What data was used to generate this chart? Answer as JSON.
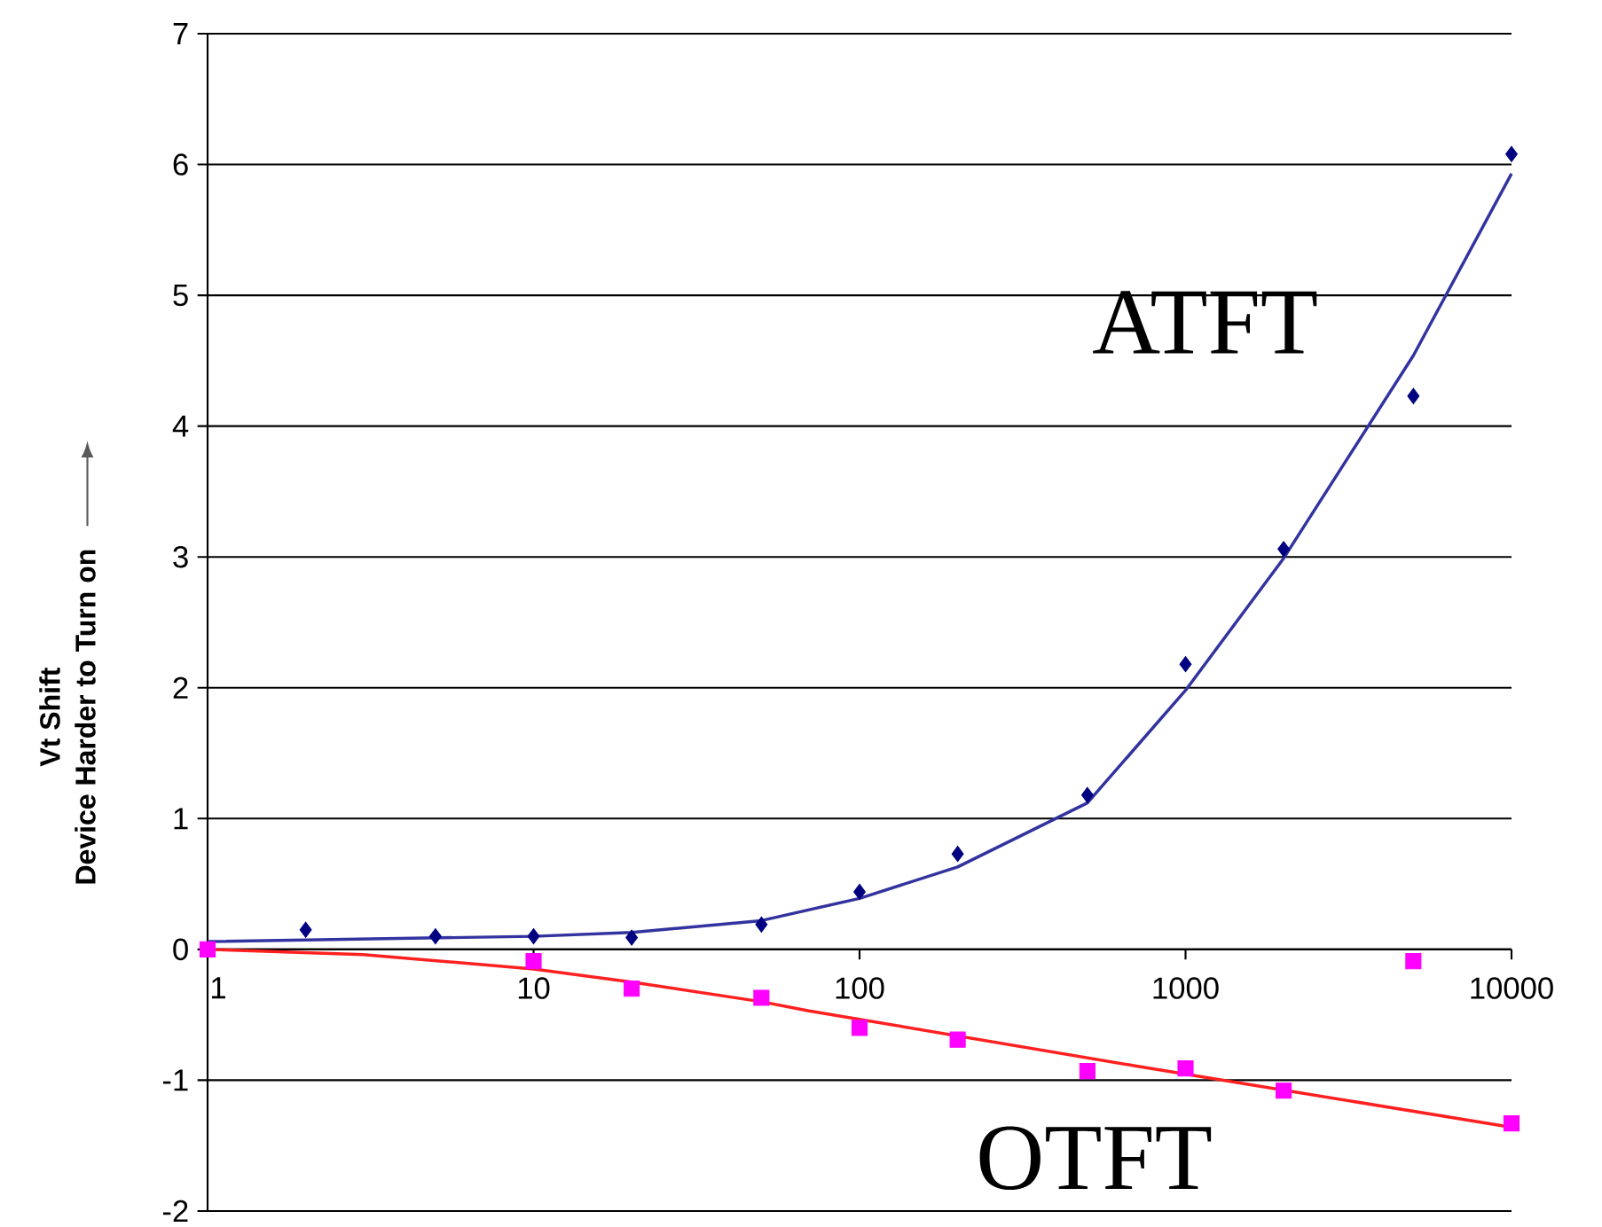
{
  "chart_data": {
    "type": "scatter",
    "ylabel": [
      "Vt Shift",
      "Device Harder to Turn on"
    ],
    "xlim": [
      1,
      10000
    ],
    "xticks": [
      1,
      10,
      100,
      1000,
      10000
    ],
    "ylim": [
      -2,
      7
    ],
    "yticks": [
      -2,
      -1,
      0,
      1,
      2,
      3,
      4,
      5,
      6,
      7
    ],
    "log": "x",
    "grid": "y",
    "series": [
      {
        "marker": "diamond",
        "color": "#000080",
        "x": [
          2,
          5,
          10,
          20,
          50,
          100,
          200,
          500,
          1000,
          2000,
          5000,
          10000
        ],
        "values": [
          0.15,
          0.1,
          0.1,
          0.09,
          0.19,
          0.44,
          0.73,
          1.18,
          2.18,
          3.06,
          4.23,
          6.08
        ]
      },
      {
        "marker": "square",
        "color": "#ff00ff",
        "x": [
          1,
          10,
          20,
          50,
          100,
          200,
          500,
          1000,
          2000,
          5000,
          10000
        ],
        "values": [
          0,
          -0.09,
          -0.3,
          -0.37,
          -0.6,
          -0.69,
          -0.93,
          -0.91,
          -1.08,
          -0.09,
          -1.33
        ]
      },
      {
        "type": "line",
        "marker": "none",
        "line_style": "solid",
        "color": "#3333a0",
        "x": [
          1,
          10,
          20,
          50,
          100,
          200,
          500,
          1000,
          2000,
          5000,
          10000
        ],
        "values": [
          0.06,
          0.1,
          0.13,
          0.22,
          0.39,
          0.63,
          1.12,
          1.98,
          2.99,
          4.54,
          5.93
        ]
      },
      {
        "type": "line",
        "marker": "none",
        "line_style": "solid",
        "color": "#ff2020",
        "x": [
          1,
          3,
          10,
          20,
          50,
          70,
          700,
          10000
        ],
        "values": [
          0,
          -0.04,
          -0.15,
          -0.25,
          -0.4,
          -0.47,
          -0.89,
          -1.36
        ]
      }
    ],
    "annotations": [
      "ATFT",
      "OTFT"
    ]
  }
}
